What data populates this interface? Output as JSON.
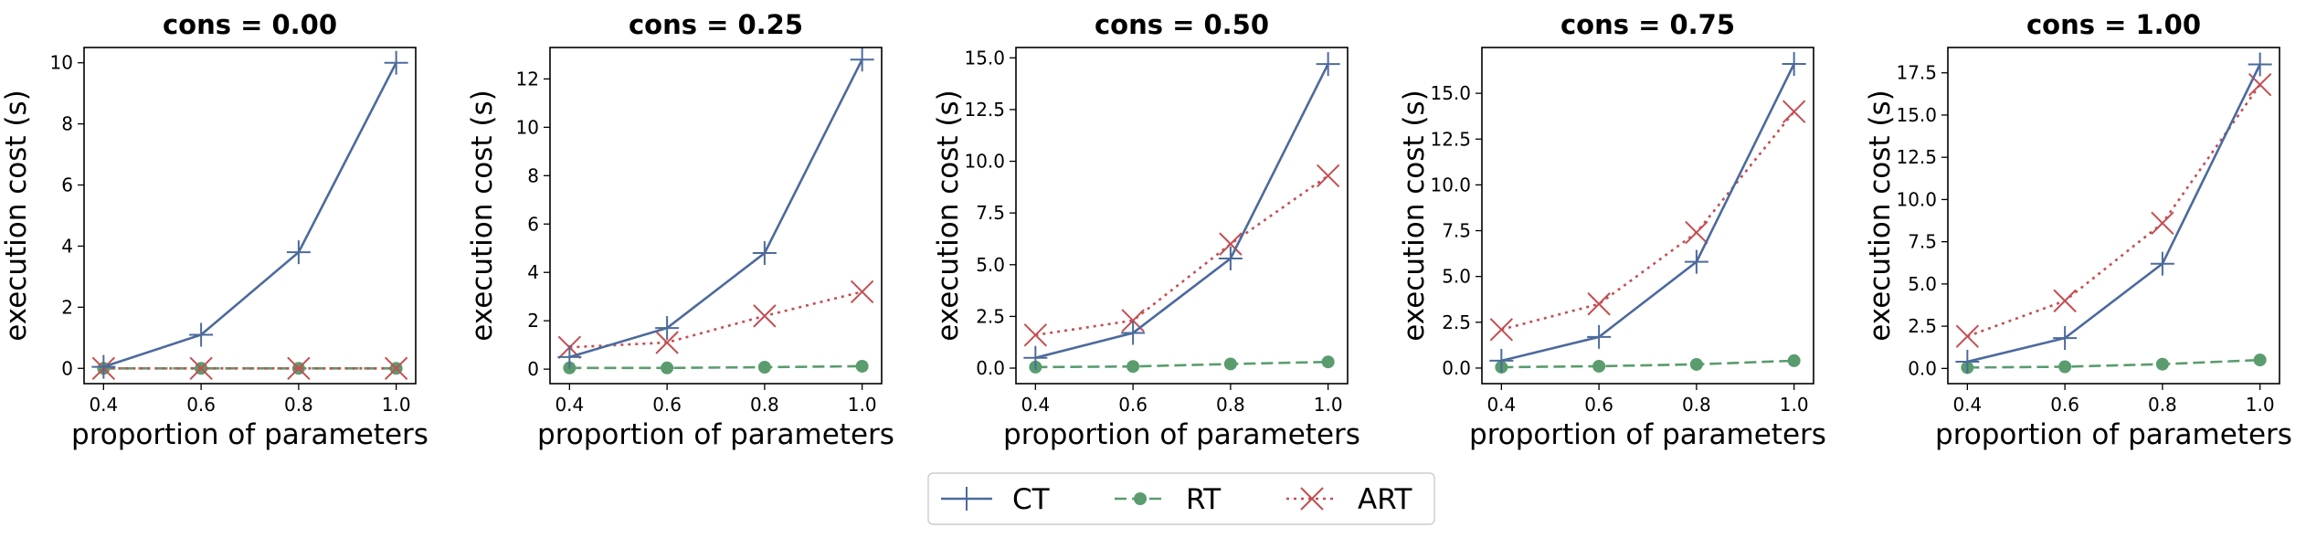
{
  "chart_data": {
    "type": "line",
    "legend": {
      "placement": "bottom-center",
      "entries": [
        "CT",
        "RT",
        "ART"
      ]
    },
    "series_styles": {
      "CT": {
        "color": "#4c6a9c",
        "line": "solid",
        "marker": "plus"
      },
      "RT": {
        "color": "#5a9c6e",
        "line": "dashed",
        "marker": "circle"
      },
      "ART": {
        "color": "#c44e52",
        "line": "dotted",
        "marker": "x"
      }
    },
    "panels": [
      {
        "title": "cons = 0.00",
        "xlabel": "proportion of parameters",
        "ylabel": "execution cost (s)",
        "x": [
          0.4,
          0.6,
          0.8,
          1.0
        ],
        "xlim": [
          0.36,
          1.04
        ],
        "ylim": [
          -0.5,
          10.5
        ],
        "yticks": [
          0,
          2,
          4,
          6,
          8,
          10
        ],
        "ytick_labels": [
          "0",
          "2",
          "4",
          "6",
          "8",
          "10"
        ],
        "series": [
          {
            "name": "CT",
            "values": [
              0.05,
              1.1,
              3.8,
              10.0
            ]
          },
          {
            "name": "RT",
            "values": [
              0.0,
              0.0,
              0.0,
              0.0
            ]
          },
          {
            "name": "ART",
            "values": [
              0.0,
              0.0,
              0.0,
              0.0
            ]
          }
        ]
      },
      {
        "title": "cons = 0.25",
        "xlabel": "proportion of parameters",
        "ylabel": "execution cost (s)",
        "x": [
          0.4,
          0.6,
          0.8,
          1.0
        ],
        "xlim": [
          0.36,
          1.04
        ],
        "ylim": [
          -0.6,
          13.3
        ],
        "yticks": [
          0,
          2,
          4,
          6,
          8,
          10,
          12
        ],
        "ytick_labels": [
          "0",
          "2",
          "4",
          "6",
          "8",
          "10",
          "12"
        ],
        "series": [
          {
            "name": "CT",
            "values": [
              0.5,
              1.7,
              4.8,
              12.8
            ]
          },
          {
            "name": "RT",
            "values": [
              0.05,
              0.05,
              0.08,
              0.12
            ]
          },
          {
            "name": "ART",
            "values": [
              0.9,
              1.1,
              2.2,
              3.2
            ]
          }
        ]
      },
      {
        "title": "cons = 0.50",
        "xlabel": "proportion of parameters",
        "ylabel": "execution cost (s)",
        "x": [
          0.4,
          0.6,
          0.8,
          1.0
        ],
        "xlim": [
          0.36,
          1.04
        ],
        "ylim": [
          -0.75,
          15.5
        ],
        "yticks": [
          0,
          2.5,
          5,
          7.5,
          10,
          12.5,
          15
        ],
        "ytick_labels": [
          "0.0",
          "2.5",
          "5.0",
          "7.5",
          "10.0",
          "12.5",
          "15.0"
        ],
        "series": [
          {
            "name": "CT",
            "values": [
              0.5,
              1.7,
              5.3,
              14.7
            ]
          },
          {
            "name": "RT",
            "values": [
              0.05,
              0.08,
              0.2,
              0.3
            ]
          },
          {
            "name": "ART",
            "values": [
              1.6,
              2.3,
              6.0,
              9.3
            ]
          }
        ]
      },
      {
        "title": "cons = 0.75",
        "xlabel": "proportion of parameters",
        "ylabel": "execution cost (s)",
        "x": [
          0.4,
          0.6,
          0.8,
          1.0
        ],
        "xlim": [
          0.36,
          1.04
        ],
        "ylim": [
          -0.85,
          17.5
        ],
        "yticks": [
          0,
          2.5,
          5,
          7.5,
          10,
          12.5,
          15
        ],
        "ytick_labels": [
          "0.0",
          "2.5",
          "5.0",
          "7.5",
          "10.0",
          "12.5",
          "15.0"
        ],
        "series": [
          {
            "name": "CT",
            "values": [
              0.4,
              1.7,
              5.8,
              16.6
            ]
          },
          {
            "name": "RT",
            "values": [
              0.05,
              0.1,
              0.2,
              0.4
            ]
          },
          {
            "name": "ART",
            "values": [
              2.1,
              3.5,
              7.4,
              14.0
            ]
          }
        ]
      },
      {
        "title": "cons = 1.00",
        "xlabel": "proportion of parameters",
        "ylabel": "execution cost (s)",
        "x": [
          0.4,
          0.6,
          0.8,
          1.0
        ],
        "xlim": [
          0.36,
          1.04
        ],
        "ylim": [
          -0.9,
          19.0
        ],
        "yticks": [
          0,
          2.5,
          5,
          7.5,
          10,
          12.5,
          15,
          17.5
        ],
        "ytick_labels": [
          "0.0",
          "2.5",
          "5.0",
          "7.5",
          "10.0",
          "12.5",
          "15.0",
          "17.5"
        ],
        "series": [
          {
            "name": "CT",
            "values": [
              0.4,
              1.8,
              6.2,
              18.0
            ]
          },
          {
            "name": "RT",
            "values": [
              0.05,
              0.1,
              0.25,
              0.5
            ]
          },
          {
            "name": "ART",
            "values": [
              1.9,
              4.0,
              8.6,
              16.8
            ]
          }
        ]
      }
    ],
    "xtick_labels": [
      "0.4",
      "0.6",
      "0.8",
      "1.0"
    ]
  }
}
